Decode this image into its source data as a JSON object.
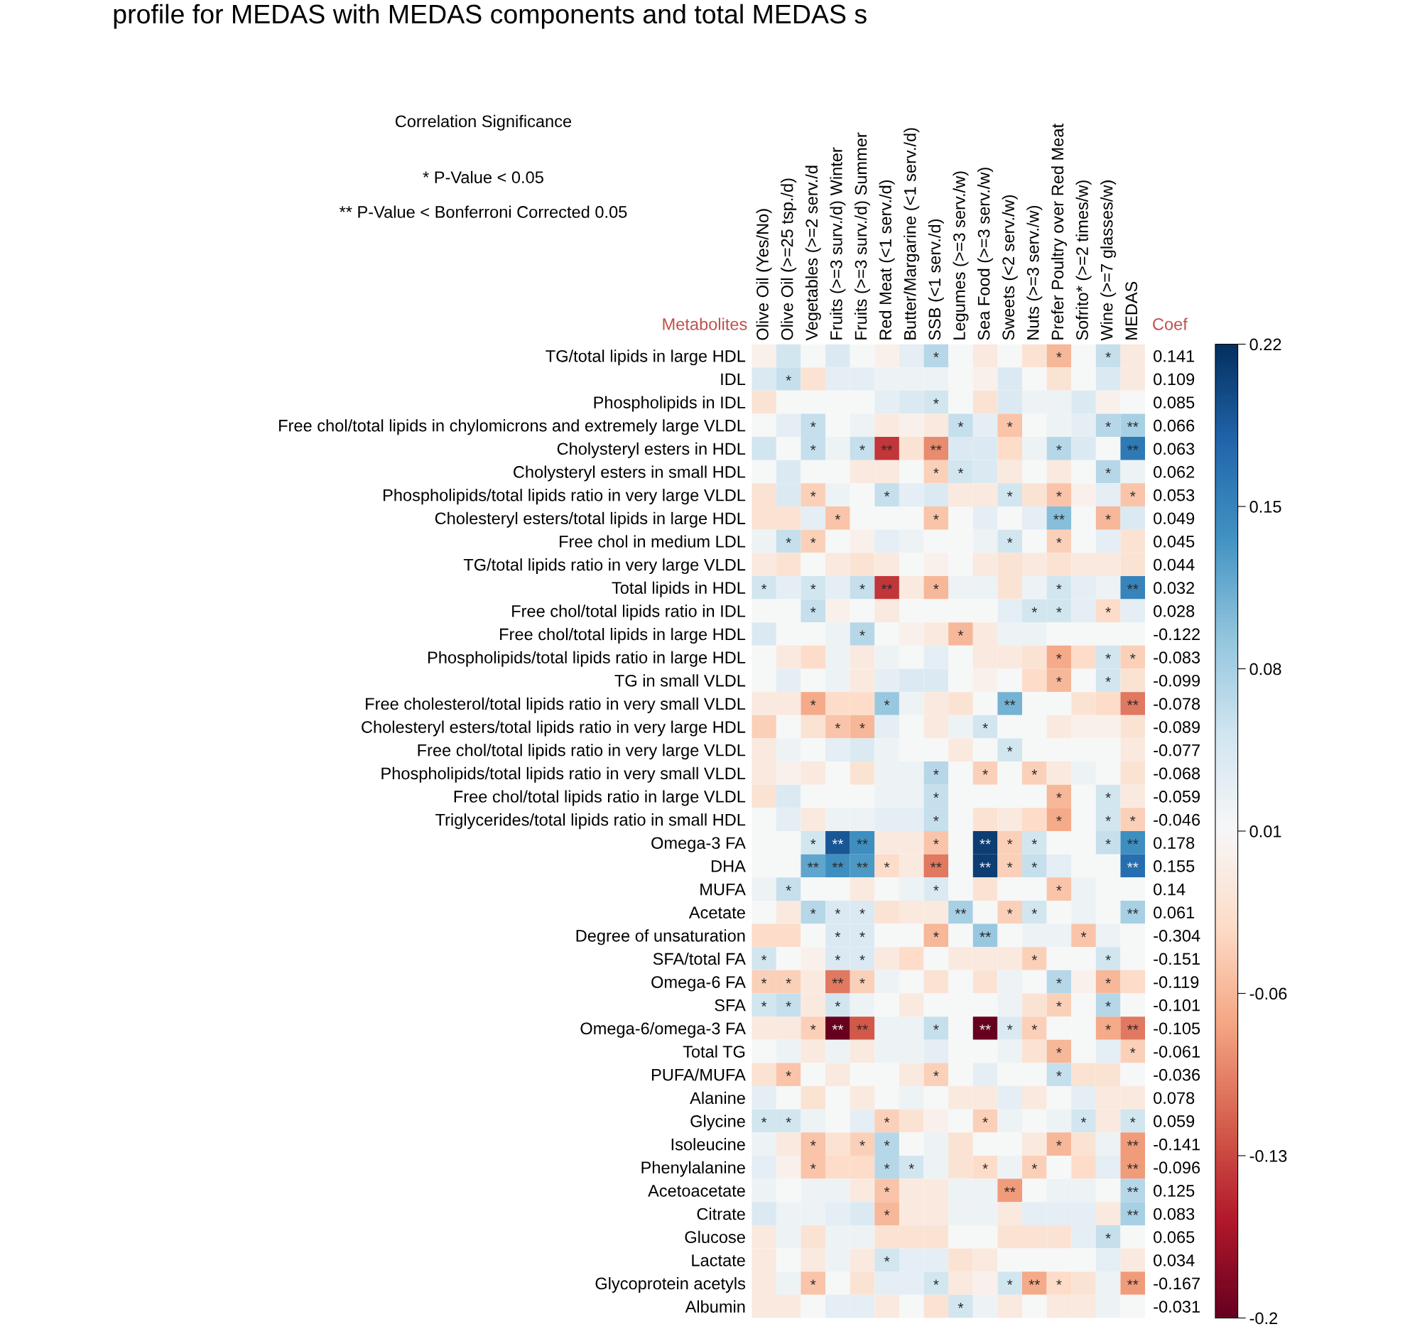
{
  "chart_data": {
    "type": "heatmap",
    "title": "profile for MEDAS with MEDAS components and total MEDAS s",
    "annotations": [
      "Correlation Significance",
      "* P-Value < 0.05",
      "** P-Value < Bonferroni Corrected 0.05"
    ],
    "ylabel": "Metabolites",
    "y2label": "Coef",
    "categories": [
      "Olive Oil (Yes/No)",
      "Olive Oil (>=25 tsp./d)",
      "Vegetables (>=2 serv./d",
      "Fruits (>=3 surv./d) Winter",
      "Fruits (>=3 surv./d) Summer",
      "Red Meat (<1 serv./d)",
      "Butter/Margarine (<1 serv./d)",
      "SSB (<1 serv./d)",
      "Legumes (>=3 serv./w)",
      "Sea Food (>=3 serv./w)",
      "Sweets (<2 serv./w)",
      "Nuts (>=3 serv./w)",
      "Prefer Poultry over Red Meat",
      "Sofrito* (>=2 times/w)",
      "Wine (>=7 glasses/w)",
      "MEDAS"
    ],
    "y_categories": [
      "TG/total lipids in large HDL",
      "IDL",
      "Phospholipids in IDL",
      "Free chol/total lipids in chylomicrons and extremely large VLDL",
      "Cholysteryl esters in HDL",
      "Cholysteryl esters in small HDL",
      "Phospholipids/total lipids ratio in very large VLDL",
      "Cholesteryl esters/total lipids in large HDL",
      "Free chol in medium LDL",
      "TG/total lipids ratio in very large VLDL",
      "Total lipids in HDL",
      "Free chol/total lipids ratio in IDL",
      "Free chol/total lipids in large HDL",
      "Phospholipids/total lipids ratio in large HDL",
      "TG in small VLDL",
      "Free cholesterol/total lipids ratio in very small VLDL",
      "Cholesteryl esters/total lipids ratio in very large HDL",
      "Free chol/total lipids ratio in very large VLDL",
      "Phospholipids/total lipids ratio in very small VLDL",
      "Free chol/total lipids ratio in large VLDL",
      "Triglycerides/total lipids ratio in small HDL",
      "Omega-3 FA",
      "DHA",
      "MUFA",
      "Acetate",
      "Degree of unsaturation",
      "SFA/total FA",
      "Omega-6 FA",
      "SFA",
      "Omega-6/omega-3 FA",
      "Total TG",
      "PUFA/MUFA",
      "Alanine",
      "Glycine",
      "Isoleucine",
      "Phenylalanine",
      "Acetoacetate",
      "Citrate",
      "Glucose",
      "Lactate",
      "Glycoprotein acetyls",
      "Albumin"
    ],
    "y2_categories": [
      "0.141",
      "0.109",
      "0.085",
      "0.066",
      "0.063",
      "0.062",
      "0.053",
      "0.049",
      "0.045",
      "0.044",
      "0.032",
      "0.028",
      "-0.122",
      "-0.083",
      "-0.099",
      "-0.078",
      "-0.089",
      "-0.077",
      "-0.068",
      "-0.059",
      "-0.046",
      "0.178",
      "0.155",
      "0.14",
      "0.061",
      "-0.304",
      "-0.151",
      "-0.119",
      "-0.101",
      "-0.105",
      "-0.061",
      "-0.036",
      "0.078",
      "0.059",
      "-0.141",
      "-0.096",
      "0.125",
      "0.083",
      "0.065",
      "0.034",
      "-0.167",
      "-0.031"
    ],
    "cells": [
      [
        0.0,
        0.05,
        0.01,
        0.04,
        0.01,
        0.0,
        0.03,
        0.07,
        0.01,
        -0.01,
        0.01,
        -0.02,
        -0.06,
        0.01,
        0.06,
        -0.01
      ],
      [
        0.04,
        0.06,
        -0.02,
        0.03,
        0.03,
        0.02,
        0.02,
        0.02,
        0.01,
        0.0,
        0.04,
        0.01,
        -0.02,
        0.01,
        0.04,
        -0.01
      ],
      [
        -0.02,
        0.01,
        0.01,
        0.01,
        0.01,
        0.03,
        0.04,
        0.05,
        0.01,
        -0.02,
        0.04,
        0.02,
        0.02,
        0.04,
        0.0,
        0.01
      ],
      [
        0.01,
        0.03,
        0.06,
        0.01,
        0.02,
        -0.01,
        0.0,
        -0.01,
        0.06,
        0.03,
        -0.05,
        0.01,
        0.02,
        0.03,
        0.07,
        0.08
      ],
      [
        0.05,
        0.01,
        0.06,
        0.02,
        0.06,
        -0.14,
        -0.02,
        -0.09,
        0.04,
        0.04,
        -0.03,
        0.02,
        0.07,
        0.04,
        0.01,
        0.16
      ],
      [
        0.01,
        0.04,
        0.01,
        0.01,
        -0.01,
        -0.01,
        0.01,
        -0.04,
        0.05,
        0.04,
        -0.01,
        0.01,
        -0.01,
        0.01,
        0.07,
        0.02
      ],
      [
        -0.02,
        0.04,
        -0.04,
        0.02,
        0.01,
        0.06,
        0.03,
        0.04,
        -0.01,
        -0.01,
        0.05,
        -0.02,
        -0.05,
        0.0,
        0.03,
        -0.05
      ],
      [
        -0.02,
        -0.02,
        0.03,
        -0.05,
        0.01,
        0.01,
        0.01,
        -0.05,
        0.01,
        0.03,
        0.01,
        0.03,
        0.1,
        0.01,
        -0.06,
        0.04
      ],
      [
        0.02,
        0.06,
        -0.04,
        0.01,
        0.0,
        0.03,
        0.02,
        0.01,
        0.01,
        0.02,
        0.05,
        0.01,
        -0.04,
        0.01,
        0.03,
        -0.02
      ],
      [
        -0.01,
        -0.02,
        0.01,
        -0.01,
        -0.02,
        -0.01,
        0.01,
        0.0,
        0.01,
        -0.01,
        -0.02,
        -0.01,
        -0.02,
        -0.01,
        -0.01,
        -0.02
      ],
      [
        0.05,
        0.03,
        0.05,
        0.03,
        0.06,
        -0.14,
        -0.01,
        -0.06,
        0.02,
        0.02,
        -0.02,
        0.02,
        0.05,
        0.03,
        0.02,
        0.15
      ],
      [
        0.01,
        0.01,
        0.06,
        0.0,
        0.01,
        -0.01,
        0.01,
        0.01,
        0.01,
        0.01,
        0.03,
        0.05,
        0.05,
        0.03,
        -0.03,
        0.03
      ],
      [
        0.04,
        0.01,
        0.01,
        0.02,
        0.07,
        0.01,
        0.0,
        -0.01,
        -0.06,
        -0.01,
        0.02,
        0.02,
        0.01,
        0.01,
        0.01,
        0.01
      ],
      [
        0.01,
        -0.01,
        -0.03,
        0.02,
        -0.01,
        0.02,
        0.01,
        0.03,
        0.01,
        -0.01,
        -0.01,
        -0.02,
        -0.07,
        -0.03,
        0.05,
        -0.04
      ],
      [
        0.01,
        0.03,
        0.01,
        0.02,
        -0.01,
        0.03,
        0.04,
        0.04,
        0.01,
        0.0,
        0.01,
        -0.03,
        -0.06,
        0.01,
        0.05,
        -0.02
      ],
      [
        -0.01,
        -0.01,
        -0.07,
        -0.03,
        -0.03,
        0.09,
        0.02,
        -0.01,
        -0.02,
        0.01,
        0.11,
        0.01,
        0.01,
        -0.02,
        -0.03,
        -0.1
      ],
      [
        -0.04,
        0.01,
        -0.02,
        -0.05,
        -0.06,
        0.03,
        0.01,
        -0.01,
        0.02,
        0.05,
        0.01,
        0.01,
        -0.01,
        0.0,
        0.0,
        -0.02
      ],
      [
        -0.01,
        0.02,
        0.01,
        0.03,
        0.04,
        0.02,
        0.01,
        0.01,
        -0.01,
        0.01,
        0.05,
        0.01,
        0.01,
        0.01,
        0.01,
        -0.01
      ],
      [
        -0.01,
        0.0,
        -0.01,
        0.01,
        -0.02,
        0.02,
        0.02,
        0.07,
        0.01,
        -0.04,
        0.01,
        -0.04,
        -0.01,
        0.02,
        0.01,
        -0.02
      ],
      [
        -0.02,
        0.04,
        0.01,
        0.01,
        0.01,
        0.02,
        0.02,
        0.06,
        0.01,
        0.01,
        0.01,
        0.01,
        -0.06,
        0.01,
        0.05,
        -0.01
      ],
      [
        0.01,
        0.03,
        -0.01,
        0.02,
        0.02,
        0.03,
        0.03,
        0.06,
        0.01,
        -0.02,
        -0.01,
        -0.03,
        -0.07,
        0.01,
        0.05,
        -0.04
      ],
      [
        0.01,
        0.01,
        0.05,
        0.19,
        0.14,
        -0.01,
        -0.01,
        -0.05,
        0.01,
        0.21,
        -0.04,
        0.05,
        0.01,
        0.01,
        0.06,
        0.14
      ],
      [
        0.01,
        0.01,
        0.12,
        0.14,
        0.13,
        -0.03,
        -0.01,
        -0.1,
        0.01,
        0.21,
        -0.04,
        0.06,
        0.03,
        0.01,
        0.01,
        0.17
      ],
      [
        0.02,
        0.06,
        0.01,
        0.01,
        -0.01,
        0.01,
        0.02,
        0.04,
        0.01,
        -0.02,
        0.01,
        0.01,
        -0.05,
        0.02,
        0.01,
        0.01
      ],
      [
        0.01,
        -0.01,
        0.07,
        0.04,
        0.04,
        -0.02,
        -0.01,
        -0.01,
        0.08,
        0.01,
        -0.04,
        0.05,
        0.01,
        0.02,
        0.01,
        0.08
      ],
      [
        -0.03,
        -0.03,
        0.01,
        0.04,
        0.04,
        0.01,
        0.01,
        -0.06,
        0.01,
        0.09,
        0.01,
        0.02,
        0.02,
        -0.05,
        0.02,
        0.01
      ],
      [
        0.05,
        0.01,
        0.0,
        0.04,
        0.04,
        -0.01,
        -0.03,
        0.01,
        -0.01,
        -0.01,
        -0.01,
        -0.04,
        0.01,
        0.01,
        0.05,
        0.01
      ],
      [
        -0.04,
        -0.04,
        -0.01,
        -0.1,
        -0.04,
        0.02,
        0.01,
        -0.02,
        0.01,
        -0.02,
        0.02,
        0.01,
        0.07,
        0.0,
        -0.06,
        -0.03
      ],
      [
        0.05,
        0.06,
        -0.01,
        0.05,
        0.02,
        0.01,
        -0.01,
        0.01,
        0.01,
        0.01,
        0.02,
        -0.02,
        -0.04,
        0.01,
        0.07,
        0.01
      ],
      [
        -0.01,
        -0.01,
        -0.04,
        -0.2,
        -0.12,
        0.02,
        0.02,
        0.06,
        0.01,
        -0.2,
        0.04,
        -0.04,
        0.01,
        0.01,
        -0.07,
        -0.1
      ],
      [
        0.01,
        0.02,
        -0.01,
        0.02,
        -0.01,
        0.02,
        0.02,
        0.03,
        0.01,
        0.01,
        0.02,
        -0.02,
        -0.06,
        0.01,
        0.03,
        -0.04
      ],
      [
        -0.02,
        -0.05,
        0.01,
        -0.01,
        0.01,
        0.01,
        -0.01,
        -0.04,
        0.01,
        0.03,
        0.01,
        0.01,
        0.06,
        -0.02,
        -0.02,
        0.01
      ],
      [
        0.03,
        0.01,
        -0.02,
        0.01,
        -0.01,
        0.01,
        0.02,
        0.01,
        -0.01,
        -0.01,
        0.03,
        -0.01,
        0.01,
        0.03,
        -0.01,
        -0.01
      ],
      [
        0.05,
        0.05,
        0.02,
        0.01,
        0.03,
        -0.04,
        -0.02,
        0.0,
        0.01,
        -0.04,
        0.02,
        0.01,
        0.02,
        0.05,
        -0.01,
        0.05
      ],
      [
        0.02,
        -0.01,
        -0.05,
        -0.02,
        -0.04,
        0.07,
        0.01,
        0.02,
        -0.02,
        0.01,
        0.01,
        -0.01,
        -0.06,
        -0.02,
        0.02,
        -0.08
      ],
      [
        0.03,
        0.0,
        -0.05,
        -0.03,
        -0.03,
        0.07,
        0.05,
        0.02,
        -0.02,
        -0.03,
        0.02,
        -0.04,
        0.01,
        -0.03,
        0.03,
        -0.08
      ],
      [
        0.02,
        0.01,
        0.02,
        0.02,
        -0.01,
        -0.05,
        -0.01,
        -0.01,
        0.02,
        0.02,
        -0.08,
        0.01,
        0.02,
        0.02,
        0.01,
        0.07
      ],
      [
        0.04,
        0.02,
        0.02,
        0.03,
        0.04,
        -0.06,
        -0.01,
        -0.01,
        0.02,
        0.02,
        -0.01,
        0.03,
        0.03,
        0.03,
        -0.01,
        0.08
      ],
      [
        -0.01,
        0.02,
        -0.02,
        0.02,
        0.02,
        -0.02,
        -0.02,
        -0.02,
        0.01,
        0.01,
        -0.02,
        -0.02,
        -0.02,
        0.03,
        0.06,
        0.01
      ],
      [
        -0.01,
        0.01,
        -0.01,
        0.02,
        -0.01,
        0.05,
        0.03,
        0.03,
        -0.02,
        -0.01,
        0.01,
        0.01,
        0.01,
        0.01,
        0.03,
        -0.01
      ],
      [
        -0.01,
        0.02,
        -0.05,
        0.01,
        -0.02,
        0.03,
        0.03,
        0.05,
        -0.01,
        0.0,
        0.05,
        -0.07,
        -0.03,
        -0.02,
        0.02,
        -0.08
      ],
      [
        -0.01,
        -0.01,
        0.01,
        0.03,
        0.03,
        -0.01,
        0.01,
        -0.02,
        0.05,
        0.02,
        -0.01,
        0.01,
        -0.01,
        -0.01,
        0.02,
        0.01
      ]
    ],
    "cell_labels": [
      [
        null,
        null,
        null,
        null,
        null,
        null,
        null,
        "*",
        null,
        null,
        null,
        null,
        "*",
        null,
        "*",
        null
      ],
      [
        null,
        "*",
        null,
        null,
        null,
        null,
        null,
        null,
        null,
        null,
        null,
        null,
        null,
        null,
        null,
        null
      ],
      [
        null,
        null,
        null,
        null,
        null,
        null,
        null,
        "*",
        null,
        null,
        null,
        null,
        null,
        null,
        null,
        null
      ],
      [
        null,
        null,
        "*",
        null,
        null,
        null,
        null,
        null,
        "*",
        null,
        "*",
        null,
        null,
        null,
        "*",
        "**"
      ],
      [
        null,
        null,
        "*",
        null,
        "*",
        "**",
        null,
        "**",
        null,
        null,
        null,
        null,
        "*",
        null,
        null,
        "**"
      ],
      [
        null,
        null,
        null,
        null,
        null,
        null,
        null,
        "*",
        "*",
        null,
        null,
        null,
        null,
        null,
        "*",
        null
      ],
      [
        null,
        null,
        "*",
        null,
        null,
        "*",
        null,
        null,
        null,
        null,
        "*",
        null,
        "*",
        null,
        null,
        "*"
      ],
      [
        null,
        null,
        null,
        "*",
        null,
        null,
        null,
        "*",
        null,
        null,
        null,
        null,
        "**",
        null,
        "*",
        null
      ],
      [
        null,
        "*",
        "*",
        null,
        null,
        null,
        null,
        null,
        null,
        null,
        "*",
        null,
        "*",
        null,
        null,
        null
      ],
      [
        null,
        null,
        null,
        null,
        null,
        null,
        null,
        null,
        null,
        null,
        null,
        null,
        null,
        null,
        null,
        null
      ],
      [
        "*",
        null,
        "*",
        null,
        "*",
        "**",
        null,
        "*",
        null,
        null,
        null,
        null,
        "*",
        null,
        null,
        "**"
      ],
      [
        null,
        null,
        "*",
        null,
        null,
        null,
        null,
        null,
        null,
        null,
        null,
        "*",
        "*",
        null,
        "*",
        null
      ],
      [
        null,
        null,
        null,
        null,
        "*",
        null,
        null,
        null,
        "*",
        null,
        null,
        null,
        null,
        null,
        null,
        null
      ],
      [
        null,
        null,
        null,
        null,
        null,
        null,
        null,
        null,
        null,
        null,
        null,
        null,
        "*",
        null,
        "*",
        "*"
      ],
      [
        null,
        null,
        null,
        null,
        null,
        null,
        null,
        null,
        null,
        null,
        null,
        null,
        "*",
        null,
        "*",
        null
      ],
      [
        null,
        null,
        "*",
        null,
        null,
        "*",
        null,
        null,
        null,
        null,
        "**",
        null,
        null,
        null,
        null,
        "**"
      ],
      [
        null,
        null,
        null,
        "*",
        "*",
        null,
        null,
        null,
        null,
        "*",
        null,
        null,
        null,
        null,
        null,
        null
      ],
      [
        null,
        null,
        null,
        null,
        null,
        null,
        null,
        null,
        null,
        null,
        "*",
        null,
        null,
        null,
        null,
        null
      ],
      [
        null,
        null,
        null,
        null,
        null,
        null,
        null,
        "*",
        null,
        "*",
        null,
        "*",
        null,
        null,
        null,
        null
      ],
      [
        null,
        null,
        null,
        null,
        null,
        null,
        null,
        "*",
        null,
        null,
        null,
        null,
        "*",
        null,
        "*",
        null
      ],
      [
        null,
        null,
        null,
        null,
        null,
        null,
        null,
        "*",
        null,
        null,
        null,
        null,
        "*",
        null,
        "*",
        "*"
      ],
      [
        null,
        null,
        "*",
        "**",
        "**",
        null,
        null,
        "*",
        null,
        "**",
        "*",
        "*",
        null,
        null,
        "*",
        "**"
      ],
      [
        null,
        null,
        "**",
        "**",
        "**",
        "*",
        null,
        "**",
        null,
        "**",
        "*",
        "*",
        null,
        null,
        null,
        "**"
      ],
      [
        null,
        "*",
        null,
        null,
        null,
        null,
        null,
        "*",
        null,
        null,
        null,
        null,
        "*",
        null,
        null,
        null
      ],
      [
        null,
        null,
        "*",
        "*",
        "*",
        null,
        null,
        null,
        "**",
        null,
        "*",
        "*",
        null,
        null,
        null,
        "**"
      ],
      [
        null,
        null,
        null,
        "*",
        "*",
        null,
        null,
        "*",
        null,
        "**",
        null,
        null,
        null,
        "*",
        null,
        null
      ],
      [
        "*",
        null,
        null,
        "*",
        "*",
        null,
        null,
        null,
        null,
        null,
        null,
        "*",
        null,
        null,
        "*",
        null
      ],
      [
        "*",
        "*",
        null,
        "**",
        "*",
        null,
        null,
        null,
        null,
        null,
        null,
        null,
        "*",
        null,
        "*",
        null
      ],
      [
        "*",
        "*",
        null,
        "*",
        null,
        null,
        null,
        null,
        null,
        null,
        null,
        null,
        "*",
        null,
        "*",
        null
      ],
      [
        null,
        null,
        "*",
        "**",
        "**",
        null,
        null,
        "*",
        null,
        "**",
        "*",
        "*",
        null,
        null,
        "*",
        "**"
      ],
      [
        null,
        null,
        null,
        null,
        null,
        null,
        null,
        null,
        null,
        null,
        null,
        null,
        "*",
        null,
        null,
        "*"
      ],
      [
        null,
        "*",
        null,
        null,
        null,
        null,
        null,
        "*",
        null,
        null,
        null,
        null,
        "*",
        null,
        null,
        null
      ],
      [
        null,
        null,
        null,
        null,
        null,
        null,
        null,
        null,
        null,
        null,
        null,
        null,
        null,
        null,
        null,
        null
      ],
      [
        "*",
        "*",
        null,
        null,
        null,
        "*",
        null,
        null,
        null,
        "*",
        null,
        null,
        null,
        "*",
        null,
        "*"
      ],
      [
        null,
        null,
        "*",
        null,
        "*",
        "*",
        null,
        null,
        null,
        null,
        null,
        null,
        "*",
        null,
        null,
        "**"
      ],
      [
        null,
        null,
        "*",
        null,
        null,
        "*",
        "*",
        null,
        null,
        "*",
        null,
        "*",
        null,
        null,
        null,
        "**"
      ],
      [
        null,
        null,
        null,
        null,
        null,
        "*",
        null,
        null,
        null,
        null,
        "**",
        null,
        null,
        null,
        null,
        "**"
      ],
      [
        null,
        null,
        null,
        null,
        null,
        "*",
        null,
        null,
        null,
        null,
        null,
        null,
        null,
        null,
        null,
        "**"
      ],
      [
        null,
        null,
        null,
        null,
        null,
        null,
        null,
        null,
        null,
        null,
        null,
        null,
        null,
        null,
        "*",
        null
      ],
      [
        null,
        null,
        null,
        null,
        null,
        "*",
        null,
        null,
        null,
        null,
        null,
        null,
        null,
        null,
        null,
        null
      ],
      [
        null,
        null,
        "*",
        null,
        null,
        null,
        null,
        "*",
        null,
        null,
        "*",
        "**",
        "*",
        null,
        null,
        "**"
      ],
      [
        null,
        null,
        null,
        null,
        null,
        null,
        null,
        null,
        "*",
        null,
        null,
        null,
        null,
        null,
        null,
        null
      ]
    ],
    "clim": [
      -0.2,
      0.22
    ],
    "cticks": [
      0.22,
      0.15,
      0.08,
      0.01,
      -0.06,
      -0.13,
      -0.2
    ]
  }
}
